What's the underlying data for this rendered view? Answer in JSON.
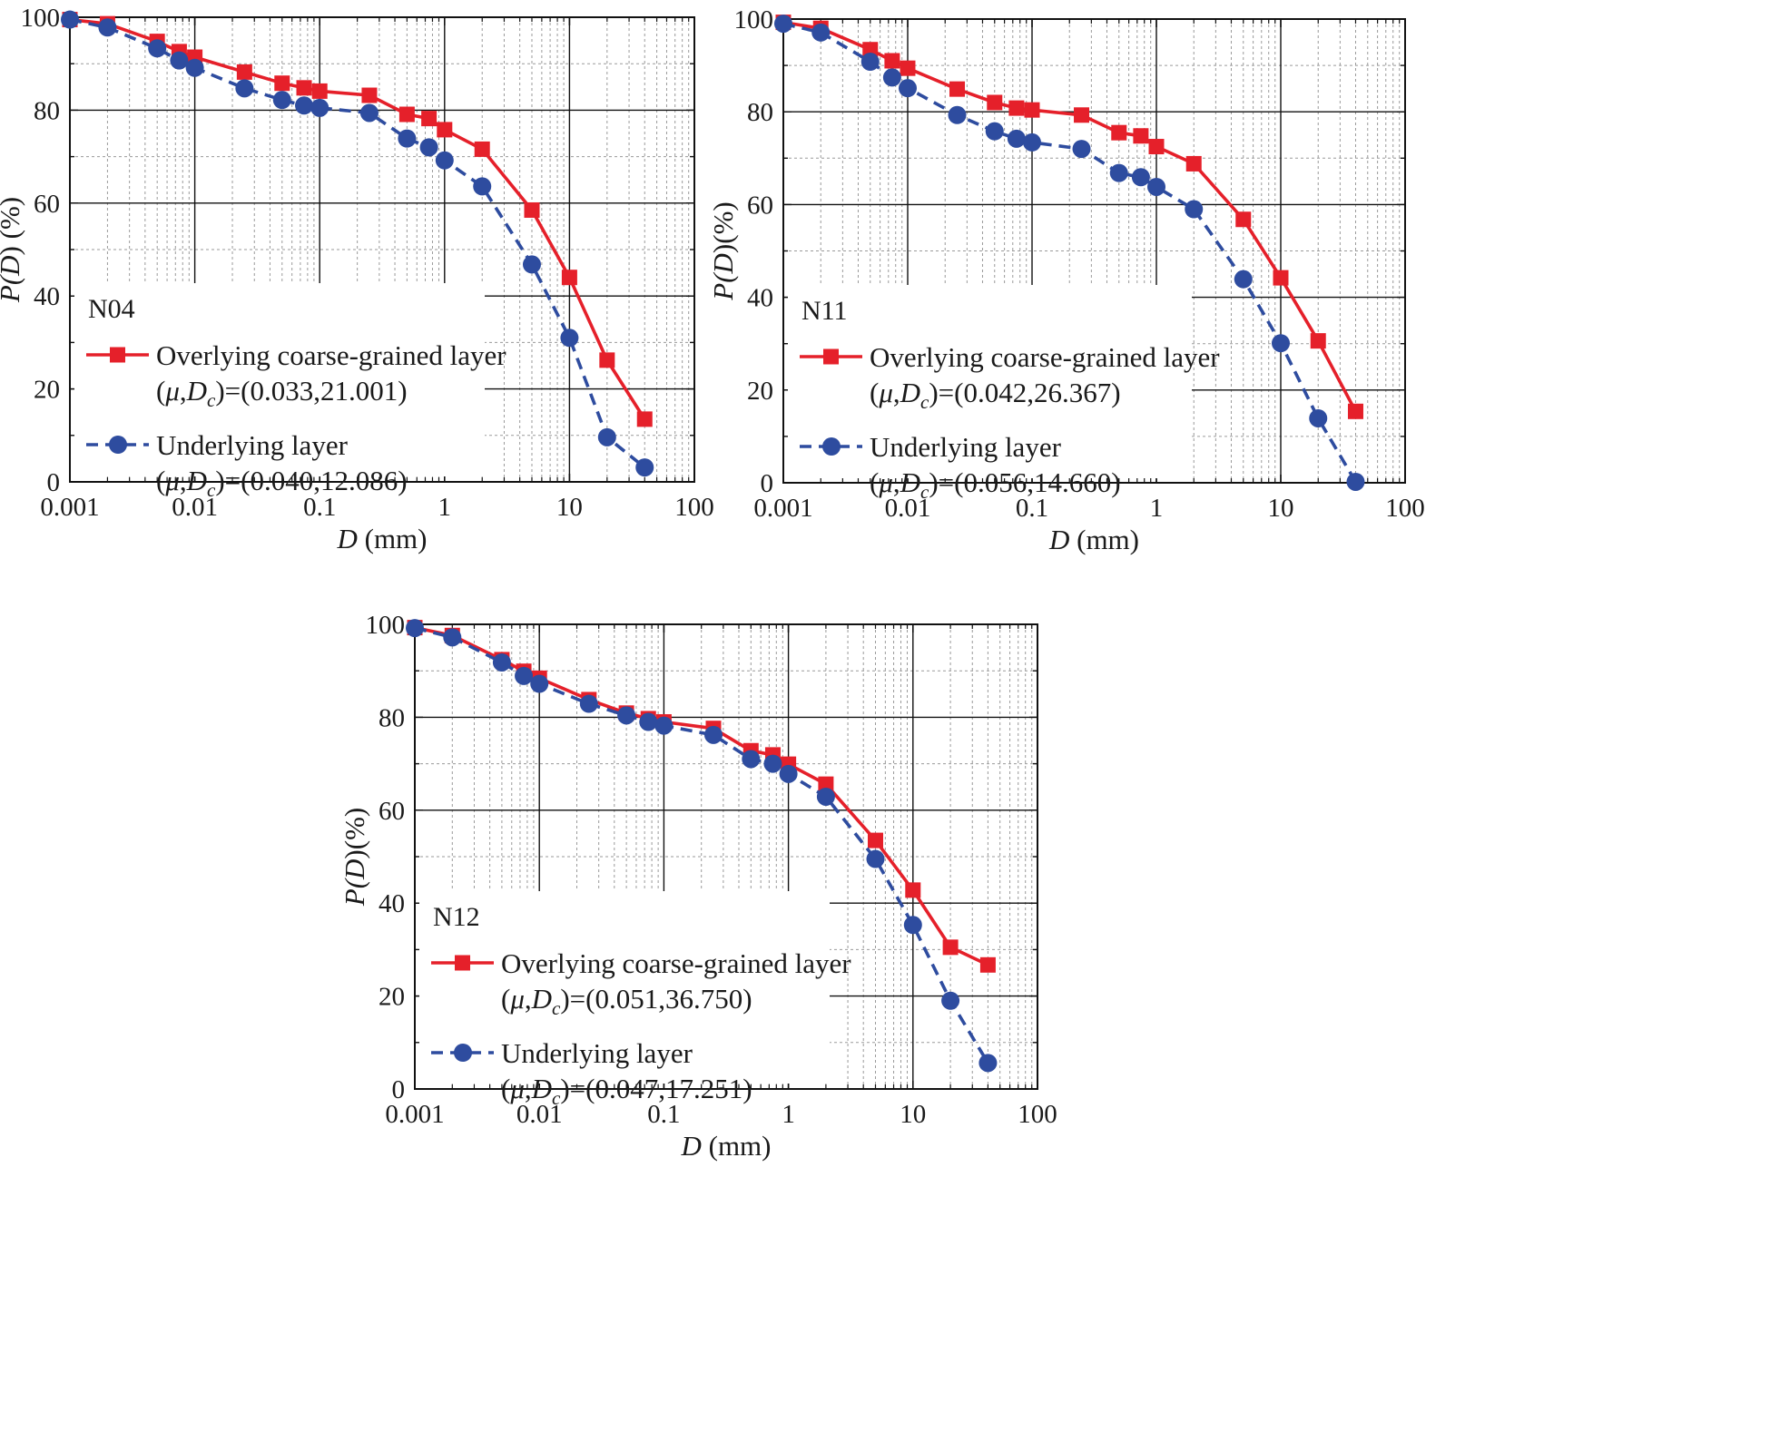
{
  "figure": {
    "panel_ids": [
      "N04",
      "N11",
      "N12"
    ]
  },
  "styles": {
    "overlying_color": "#e5202a",
    "underlying_color": "#2e4c9f",
    "major_grid_color": "#111111",
    "minor_grid_color": "#9a9a9a"
  },
  "chart_data": [
    {
      "type": "line",
      "panel_label": "N04",
      "xscale": "log",
      "xlim": [
        0.001,
        100
      ],
      "ylim": [
        0,
        100
      ],
      "xticks": [
        "0.001",
        "0.01",
        "0.1",
        "1",
        "10",
        "100"
      ],
      "yticks": [
        "0",
        "20",
        "40",
        "60",
        "80",
        "100"
      ],
      "xlabel": {
        "italic": "D",
        "rest": " (mm)"
      },
      "ylabel": {
        "pre": "P(",
        "italic": "D",
        "post": ") (%)"
      },
      "series": [
        {
          "name": "Overlying coarse-grained layer",
          "param_label": ")=(0.033,21.001)",
          "marker": "square",
          "linestyle": "solid",
          "x": [
            0.001,
            0.002,
            0.005,
            0.0075,
            0.01,
            0.025,
            0.05,
            0.075,
            0.1,
            0.25,
            0.5,
            0.75,
            1,
            2,
            5,
            10,
            20,
            40
          ],
          "y": [
            99.5,
            98.6,
            94.8,
            92.6,
            91.4,
            88.2,
            85.8,
            84.8,
            84.1,
            83.2,
            79.1,
            78.2,
            75.8,
            71.6,
            58.5,
            44.0,
            26.2,
            13.5
          ]
        },
        {
          "name": "Underlying layer",
          "param_label": ")=(0.040,12.086)",
          "marker": "circle",
          "linestyle": "dashed",
          "x": [
            0.001,
            0.002,
            0.005,
            0.0075,
            0.01,
            0.025,
            0.05,
            0.075,
            0.1,
            0.25,
            0.5,
            0.75,
            1,
            2,
            5,
            10,
            20,
            40
          ],
          "y": [
            99.5,
            97.8,
            93.3,
            90.7,
            89.1,
            84.7,
            82.2,
            81.0,
            80.5,
            79.4,
            73.9,
            72.0,
            69.2,
            63.6,
            46.8,
            31.0,
            9.6,
            3.1
          ]
        }
      ]
    },
    {
      "type": "line",
      "panel_label": "N11",
      "xscale": "log",
      "xlim": [
        0.001,
        100
      ],
      "ylim": [
        0,
        100
      ],
      "xticks": [
        "0.001",
        "0.01",
        "0.1",
        "1",
        "10",
        "100"
      ],
      "yticks": [
        "0",
        "20",
        "40",
        "60",
        "80",
        "100"
      ],
      "xlabel": {
        "italic": "D",
        "rest": " (mm)"
      },
      "ylabel": {
        "pre": "P(",
        "italic": "D",
        "post": ")(%)"
      },
      "series": [
        {
          "name": "Overlying coarse-grained layer",
          "param_label": ")=(0.042,26.367)",
          "marker": "square",
          "linestyle": "solid",
          "x": [
            0.001,
            0.002,
            0.005,
            0.0075,
            0.01,
            0.025,
            0.05,
            0.075,
            0.1,
            0.25,
            0.5,
            0.75,
            1,
            2,
            5,
            10,
            20,
            40
          ],
          "y": [
            99.3,
            98.0,
            93.4,
            91.0,
            89.4,
            84.9,
            82.0,
            80.8,
            80.4,
            79.3,
            75.5,
            74.8,
            72.5,
            68.8,
            56.8,
            44.2,
            30.6,
            15.4
          ]
        },
        {
          "name": "Underlying layer",
          "param_label": ")=(0.056,14.660)",
          "marker": "circle",
          "linestyle": "dashed",
          "x": [
            0.001,
            0.002,
            0.005,
            0.0075,
            0.01,
            0.025,
            0.05,
            0.075,
            0.1,
            0.25,
            0.5,
            0.75,
            1,
            2,
            5,
            10,
            20,
            40
          ],
          "y": [
            99.0,
            97.1,
            90.8,
            87.4,
            85.1,
            79.3,
            75.8,
            74.2,
            73.4,
            72.0,
            66.8,
            65.9,
            63.8,
            59.0,
            43.9,
            30.1,
            13.9,
            0.2
          ]
        }
      ]
    },
    {
      "type": "line",
      "panel_label": "N12",
      "xscale": "log",
      "xlim": [
        0.001,
        100
      ],
      "ylim": [
        0,
        100
      ],
      "xticks": [
        "0.001",
        "0.01",
        "0.1",
        "1",
        "10",
        "100"
      ],
      "yticks": [
        "0",
        "20",
        "40",
        "60",
        "80",
        "100"
      ],
      "xlabel": {
        "italic": "D",
        "rest": " (mm)"
      },
      "ylabel": {
        "pre": "P(",
        "italic": "D",
        "post": ")(%)"
      },
      "series": [
        {
          "name": "Overlying coarse-grained layer",
          "param_label": ")=(0.051,36.750)",
          "marker": "square",
          "linestyle": "solid",
          "x": [
            0.001,
            0.002,
            0.005,
            0.0075,
            0.01,
            0.025,
            0.05,
            0.075,
            0.1,
            0.25,
            0.5,
            0.75,
            1,
            2,
            5,
            10,
            20,
            40
          ],
          "y": [
            99.3,
            97.6,
            92.4,
            89.9,
            88.4,
            83.8,
            80.9,
            79.7,
            79.0,
            77.6,
            72.8,
            71.9,
            69.9,
            65.6,
            53.5,
            42.8,
            30.5,
            26.7
          ]
        },
        {
          "name": "Underlying layer",
          "param_label": ")=(0.047,17.251)",
          "marker": "circle",
          "linestyle": "dashed",
          "x": [
            0.001,
            0.002,
            0.005,
            0.0075,
            0.01,
            0.025,
            0.05,
            0.075,
            0.1,
            0.25,
            0.5,
            0.75,
            1,
            2,
            5,
            10,
            20,
            40
          ],
          "y": [
            99.2,
            97.2,
            91.8,
            88.9,
            87.2,
            82.9,
            80.4,
            79.0,
            78.2,
            76.2,
            71.0,
            70.0,
            67.8,
            62.9,
            49.5,
            35.3,
            19.0,
            5.6
          ]
        }
      ]
    }
  ]
}
